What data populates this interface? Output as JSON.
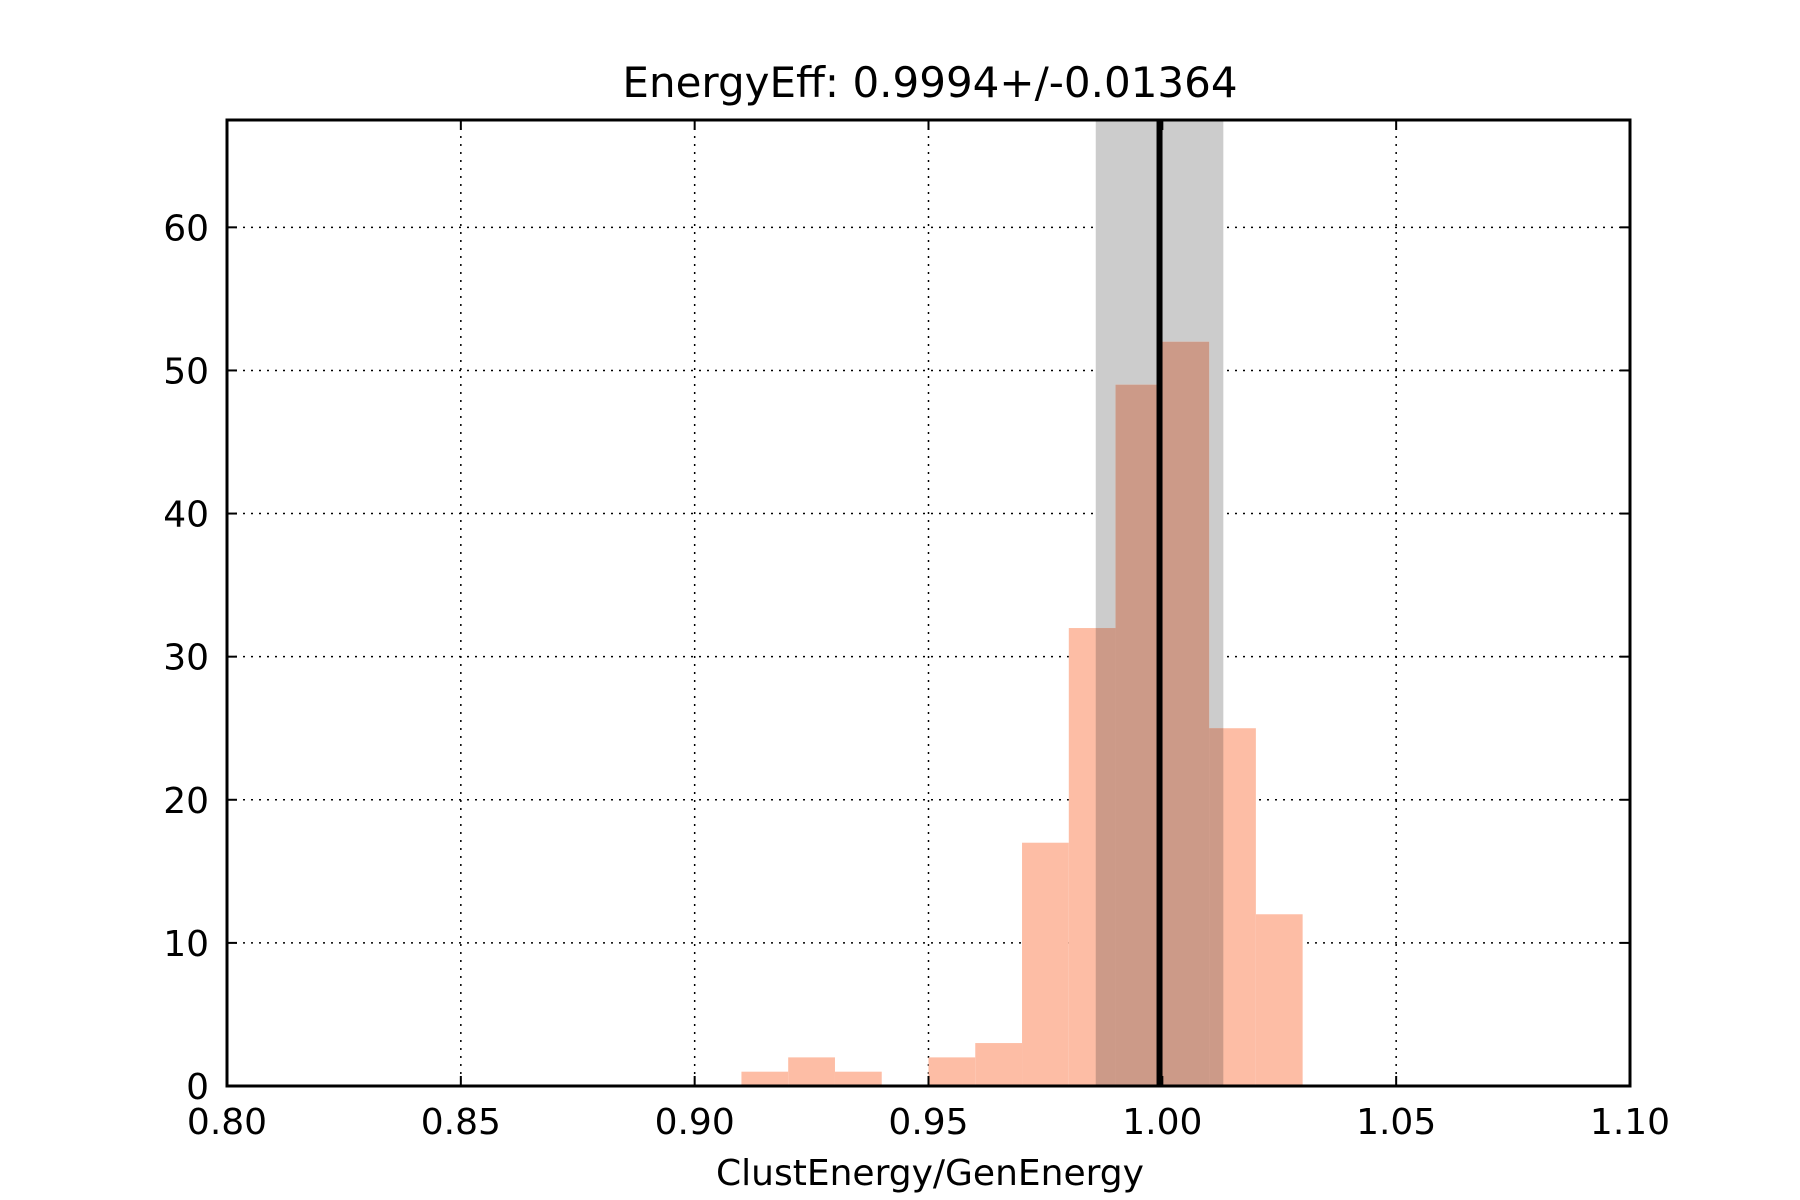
{
  "chart_data": {
    "type": "bar",
    "title": "EnergyEff: 0.9994+/-0.01364",
    "xlabel": "ClustEnergy/GenEnergy",
    "ylabel": "",
    "xlim": [
      0.8,
      1.1
    ],
    "ylim": [
      0,
      67.5
    ],
    "xticks": [
      "0.80",
      "0.85",
      "0.90",
      "0.95",
      "1.00",
      "1.05",
      "1.10"
    ],
    "yticks": [
      "0",
      "10",
      "20",
      "30",
      "40",
      "50",
      "60"
    ],
    "grid": true,
    "bin_edges": [
      0.91,
      0.92,
      0.93,
      0.94,
      0.95,
      0.96,
      0.97,
      0.98,
      0.99,
      1.0,
      1.01,
      1.02,
      1.03
    ],
    "counts": [
      1,
      2,
      1,
      0,
      2,
      3,
      17,
      32,
      49,
      52,
      25,
      12
    ],
    "mean": 0.9994,
    "std": 0.01364,
    "colors": {
      "bars": "#fdbda5",
      "bars_overlap": "#cc9a88",
      "band": "#cccccc",
      "mean_line": "#000000"
    }
  }
}
